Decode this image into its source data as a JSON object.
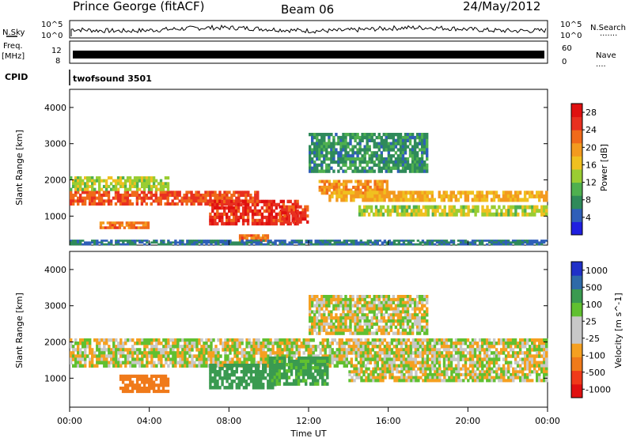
{
  "header": {
    "station": "Prince George (fitACF)",
    "beam": "Beam 06",
    "date": "24/May/2012"
  },
  "left_labels": {
    "nsky": "N.Sky",
    "freq_line1": "Freq.",
    "freq_line2": "[MHz]",
    "cpid": "CPID"
  },
  "right_labels": {
    "nsearch": "N.Search",
    "nsearch_dots": "·······",
    "nave": "Nave",
    "nave_dots": "····"
  },
  "cpid_text": "twofsound 3501",
  "noise_axis": {
    "left_ticks": [
      "10^5",
      "10^0"
    ],
    "right_ticks": [
      "10^5",
      "10^0"
    ]
  },
  "freq_axis": {
    "left_ticks": [
      "12",
      "8"
    ],
    "right_ticks": [
      "60",
      "0"
    ]
  },
  "colors": {
    "power_scale": [
      "#1f1fe0",
      "#2f5fb8",
      "#2f8a5a",
      "#4fb04f",
      "#9acd32",
      "#f0c020",
      "#f39a1f",
      "#f06a1a",
      "#e83020",
      "#e01010"
    ],
    "velocity_scale": [
      "#e01010",
      "#f03a1a",
      "#f07a1a",
      "#f5a020",
      "#c8c8c8",
      "#c8c8c8",
      "#60c030",
      "#3a9a50",
      "#2f6aa8",
      "#2030c8"
    ]
  },
  "chart_data": [
    {
      "type": "heatmap",
      "title": "Power",
      "xlabel": "Time UT",
      "ylabel": "Slant Range [km]",
      "xlim": [
        "00:00",
        "24:00"
      ],
      "ylim": [
        200,
        4500
      ],
      "yticks": [
        "1000",
        "2000",
        "3000",
        "4000"
      ],
      "xticks": [
        "00:00",
        "04:00",
        "08:00",
        "12:00",
        "16:00",
        "20:00",
        "00:00"
      ],
      "colorbar": {
        "label": "Power [dB]",
        "ticks": [
          "4",
          "8",
          "12",
          "16",
          "20",
          "24",
          "28"
        ],
        "range": [
          0,
          30
        ]
      },
      "regions": [
        {
          "t": [
            0.0,
            9.5
          ],
          "r": [
            1300,
            1700
          ],
          "level": 24
        },
        {
          "t": [
            0.0,
            5.0
          ],
          "r": [
            1700,
            2100
          ],
          "level": 14
        },
        {
          "t": [
            1.5,
            4.0
          ],
          "r": [
            650,
            850
          ],
          "level": 22
        },
        {
          "t": [
            7.0,
            11.5
          ],
          "r": [
            750,
            1450
          ],
          "level": 26
        },
        {
          "t": [
            8.5,
            10.0
          ],
          "r": [
            300,
            500
          ],
          "level": 22
        },
        {
          "t": [
            10.5,
            12.0
          ],
          "r": [
            800,
            1300
          ],
          "level": 25
        },
        {
          "t": [
            12.5,
            16.0
          ],
          "r": [
            1600,
            2000
          ],
          "level": 20
        },
        {
          "t": [
            13.0,
            24.0
          ],
          "r": [
            1400,
            1700
          ],
          "level": 18
        },
        {
          "t": [
            14.5,
            24.0
          ],
          "r": [
            1000,
            1300
          ],
          "level": 14
        },
        {
          "t": [
            12.0,
            18.0
          ],
          "r": [
            2200,
            3300
          ],
          "level": 8
        },
        {
          "t": [
            0.0,
            24.0
          ],
          "r": [
            200,
            350
          ],
          "level": 6
        }
      ]
    },
    {
      "type": "heatmap",
      "title": "Velocity",
      "xlabel": "Time UT",
      "ylabel": "Slant Range [km]",
      "xlim": [
        "00:00",
        "24:00"
      ],
      "ylim": [
        200,
        4500
      ],
      "yticks": [
        "1000",
        "2000",
        "3000",
        "4000"
      ],
      "xticks": [
        "00:00",
        "04:00",
        "08:00",
        "12:00",
        "16:00",
        "20:00",
        "00:00"
      ],
      "colorbar": {
        "label": "Velocity [m s^-1]",
        "ticks": [
          "1000",
          "500",
          "100",
          "25",
          "-25",
          "-100",
          "-500",
          "-1000"
        ]
      },
      "regions": [
        {
          "t": [
            0.0,
            24.0
          ],
          "r": [
            1300,
            2100
          ],
          "velocity": 0
        },
        {
          "t": [
            2.5,
            5.0
          ],
          "r": [
            600,
            1100
          ],
          "velocity": -300
        },
        {
          "t": [
            7.0,
            10.5
          ],
          "r": [
            700,
            1400
          ],
          "velocity": 200
        },
        {
          "t": [
            10.0,
            13.0
          ],
          "r": [
            800,
            1600
          ],
          "velocity": 150
        },
        {
          "t": [
            14.0,
            24.0
          ],
          "r": [
            900,
            1300
          ],
          "velocity": 0
        },
        {
          "t": [
            12.0,
            18.0
          ],
          "r": [
            2200,
            3300
          ],
          "velocity": 0
        }
      ]
    }
  ]
}
